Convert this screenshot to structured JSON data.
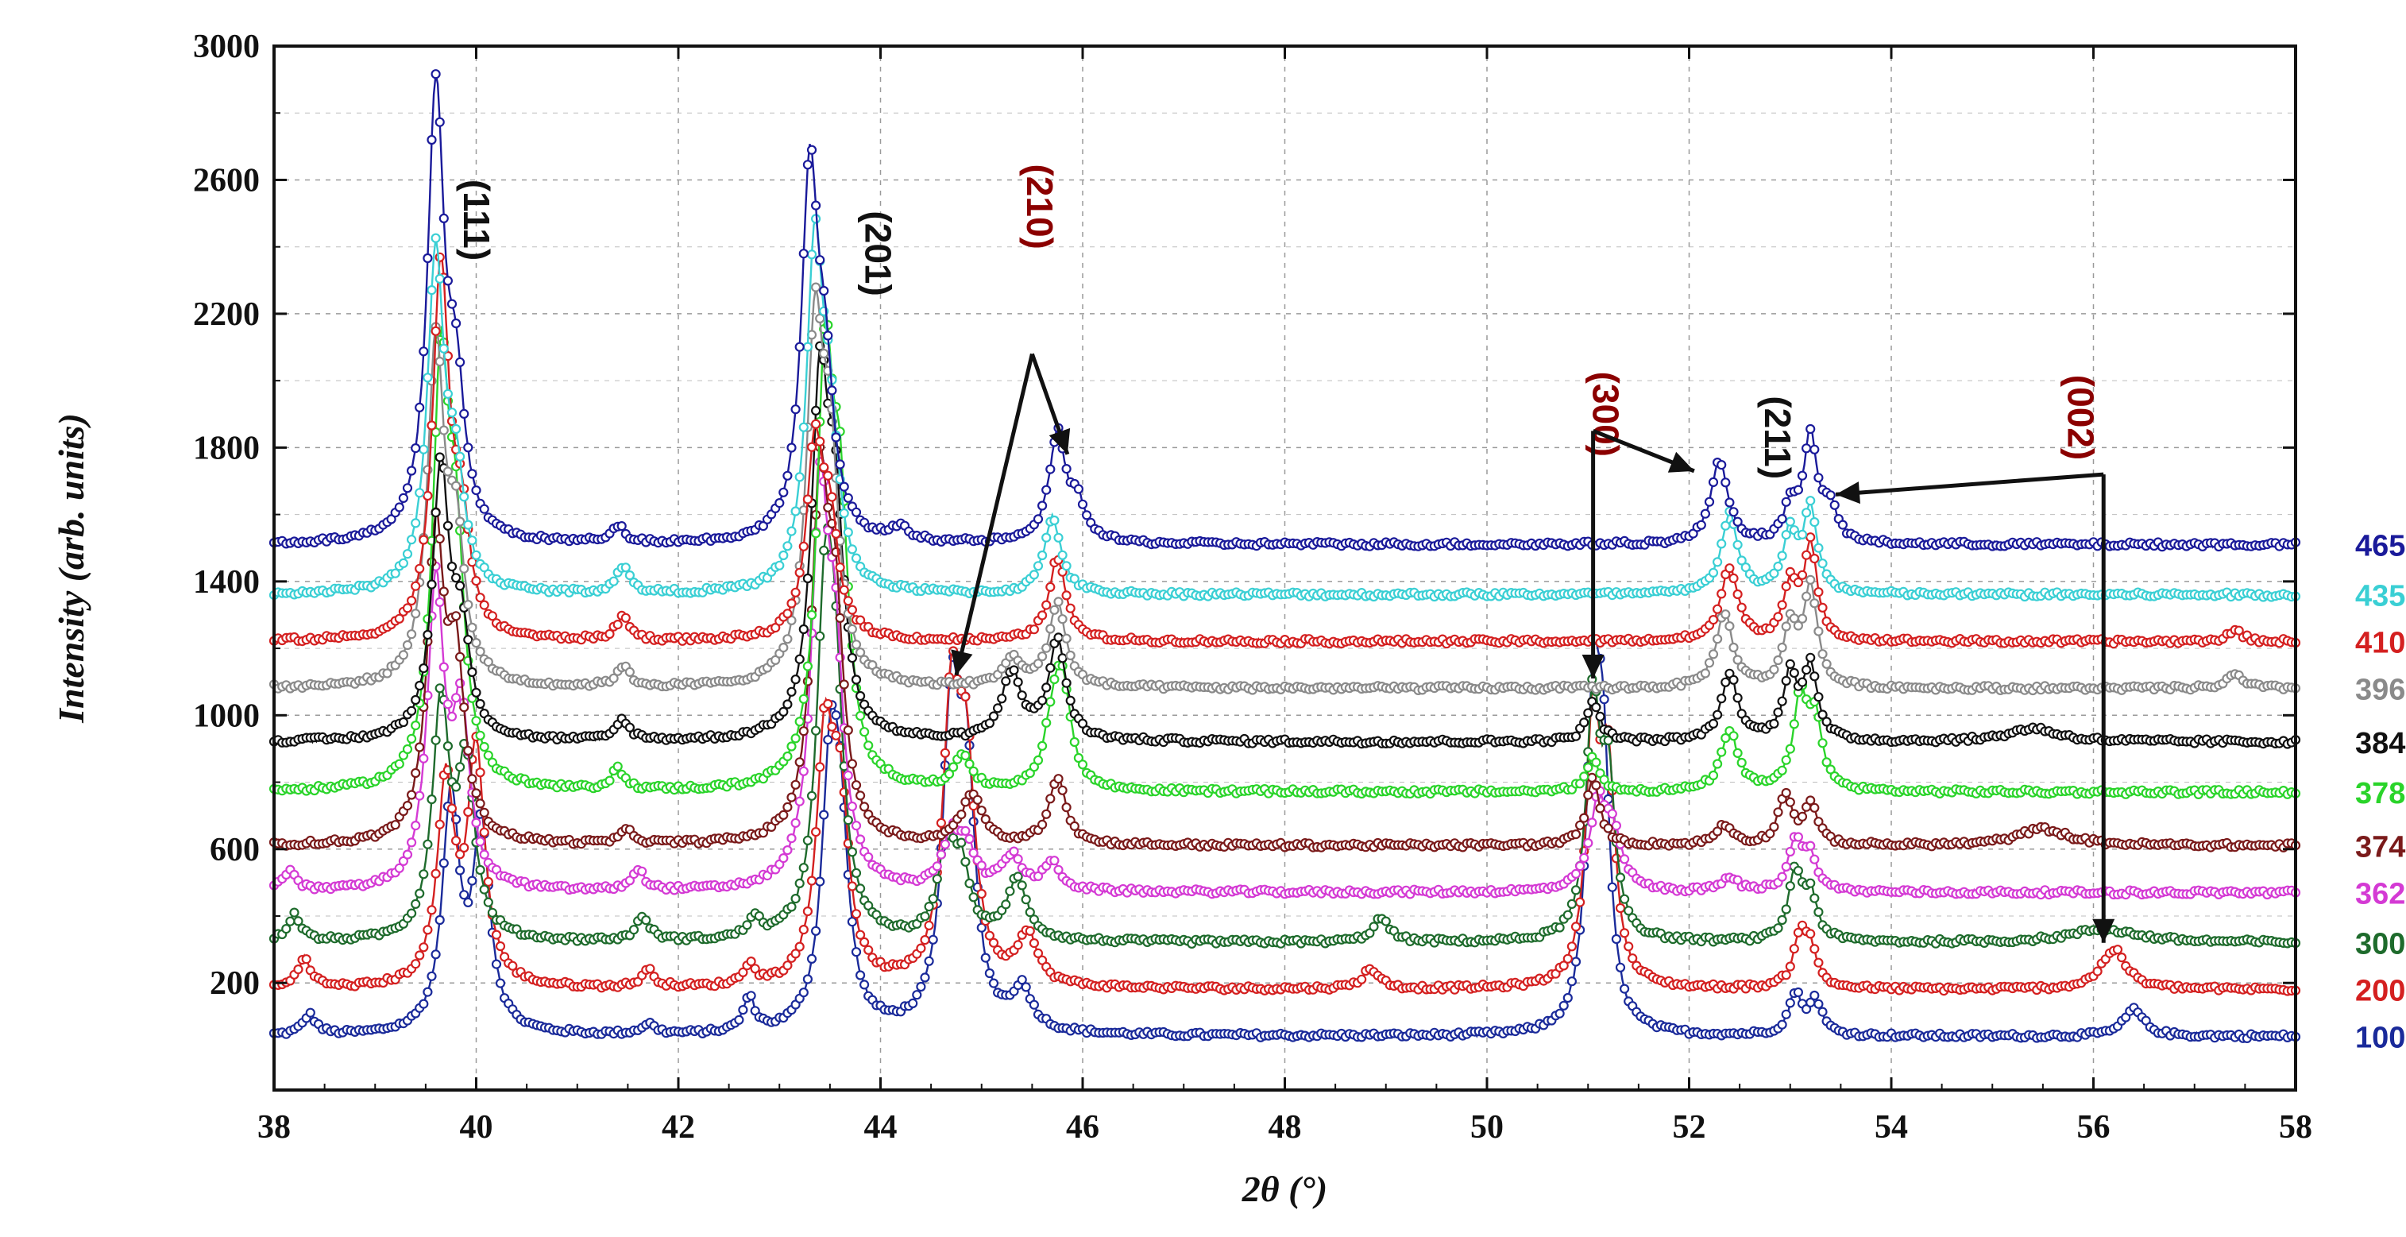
{
  "chart_data": {
    "type": "line",
    "title": "",
    "xlabel": "2θ (°)",
    "ylabel": "Intensity (arb. units)",
    "xlim": [
      38,
      58
    ],
    "ylim": [
      -120,
      3000
    ],
    "x_ticks": [
      38,
      40,
      42,
      44,
      46,
      48,
      50,
      52,
      54,
      56,
      58
    ],
    "y_ticks": [
      200,
      600,
      1000,
      1400,
      1800,
      2200,
      2600,
      3000
    ],
    "grid": true,
    "legend_position": "right",
    "series": [
      {
        "name": "100",
        "color": "#1a2a9a",
        "baseline": 40,
        "peaks": [
          [
            38.35,
            60,
            0.08
          ],
          [
            39.75,
            700,
            0.1
          ],
          [
            40.05,
            600,
            0.1
          ],
          [
            41.7,
            30,
            0.08
          ],
          [
            42.7,
            100,
            0.07
          ],
          [
            43.5,
            700,
            0.1
          ],
          [
            43.6,
            500,
            0.1
          ],
          [
            44.7,
            900,
            0.1
          ],
          [
            44.85,
            700,
            0.1
          ],
          [
            45.4,
            120,
            0.12
          ],
          [
            51.05,
            900,
            0.08
          ],
          [
            51.15,
            700,
            0.08
          ],
          [
            53.05,
            120,
            0.08
          ],
          [
            53.25,
            100,
            0.08
          ],
          [
            56.4,
            80,
            0.12
          ]
        ]
      },
      {
        "name": "200",
        "color": "#d42020",
        "baseline": 180,
        "peaks": [
          [
            38.3,
            90,
            0.08
          ],
          [
            39.7,
            600,
            0.1
          ],
          [
            40.0,
            700,
            0.1
          ],
          [
            41.7,
            50,
            0.08
          ],
          [
            42.7,
            60,
            0.07
          ],
          [
            43.45,
            700,
            0.1
          ],
          [
            43.6,
            500,
            0.1
          ],
          [
            44.7,
            800,
            0.1
          ],
          [
            44.85,
            600,
            0.1
          ],
          [
            45.45,
            150,
            0.12
          ],
          [
            48.85,
            60,
            0.1
          ],
          [
            51.05,
            800,
            0.08
          ],
          [
            51.2,
            600,
            0.08
          ],
          [
            53.1,
            150,
            0.08
          ],
          [
            53.2,
            100,
            0.08
          ],
          [
            56.2,
            120,
            0.15
          ]
        ]
      },
      {
        "name": "300",
        "color": "#1e6b2c",
        "baseline": 320,
        "peaks": [
          [
            38.2,
            80,
            0.08
          ],
          [
            39.65,
            700,
            0.1
          ],
          [
            39.9,
            500,
            0.1
          ],
          [
            41.65,
            70,
            0.08
          ],
          [
            42.75,
            60,
            0.07
          ],
          [
            43.45,
            900,
            0.1
          ],
          [
            43.55,
            600,
            0.1
          ],
          [
            44.65,
            250,
            0.1
          ],
          [
            44.8,
            200,
            0.1
          ],
          [
            45.35,
            180,
            0.12
          ],
          [
            48.95,
            70,
            0.1
          ],
          [
            51.05,
            700,
            0.08
          ],
          [
            51.2,
            450,
            0.08
          ],
          [
            53.05,
            200,
            0.08
          ],
          [
            53.2,
            130,
            0.08
          ],
          [
            56.1,
            40,
            0.4
          ]
        ]
      },
      {
        "name": "362",
        "color": "#d43ad4",
        "baseline": 470,
        "peaks": [
          [
            38.15,
            60,
            0.08
          ],
          [
            39.6,
            900,
            0.1
          ],
          [
            39.85,
            500,
            0.1
          ],
          [
            41.6,
            60,
            0.08
          ],
          [
            43.4,
            1100,
            0.1
          ],
          [
            43.55,
            600,
            0.1
          ],
          [
            44.7,
            150,
            0.1
          ],
          [
            44.85,
            120,
            0.1
          ],
          [
            45.3,
            100,
            0.12
          ],
          [
            45.7,
            80,
            0.1
          ],
          [
            51.1,
            250,
            0.1
          ],
          [
            51.25,
            150,
            0.1
          ],
          [
            52.4,
            40,
            0.1
          ],
          [
            53.05,
            150,
            0.08
          ],
          [
            53.2,
            100,
            0.08
          ]
        ]
      },
      {
        "name": "374",
        "color": "#7a1a1a",
        "baseline": 610,
        "peaks": [
          [
            39.6,
            900,
            0.1
          ],
          [
            39.8,
            500,
            0.1
          ],
          [
            41.5,
            40,
            0.08
          ],
          [
            43.4,
            1000,
            0.1
          ],
          [
            43.55,
            600,
            0.1
          ],
          [
            44.9,
            150,
            0.12
          ],
          [
            45.75,
            200,
            0.1
          ],
          [
            51.05,
            200,
            0.08
          ],
          [
            52.35,
            60,
            0.1
          ],
          [
            52.95,
            150,
            0.08
          ],
          [
            53.2,
            120,
            0.08
          ],
          [
            55.5,
            50,
            0.3
          ]
        ]
      },
      {
        "name": "378",
        "color": "#2ad42a",
        "baseline": 770,
        "peaks": [
          [
            39.65,
            1200,
            0.1
          ],
          [
            39.8,
            600,
            0.1
          ],
          [
            41.4,
            60,
            0.08
          ],
          [
            43.45,
            1200,
            0.1
          ],
          [
            43.6,
            700,
            0.1
          ],
          [
            44.8,
            100,
            0.1
          ],
          [
            45.8,
            300,
            0.1
          ],
          [
            45.7,
            150,
            0.1
          ],
          [
            51.05,
            100,
            0.08
          ],
          [
            52.4,
            180,
            0.1
          ],
          [
            53.1,
            280,
            0.08
          ],
          [
            53.25,
            200,
            0.08
          ]
        ]
      },
      {
        "name": "384",
        "color": "#111111",
        "baseline": 920,
        "peaks": [
          [
            39.65,
            800,
            0.1
          ],
          [
            39.85,
            300,
            0.1
          ],
          [
            41.45,
            60,
            0.08
          ],
          [
            43.4,
            1000,
            0.1
          ],
          [
            43.55,
            600,
            0.1
          ],
          [
            45.3,
            200,
            0.12
          ],
          [
            45.75,
            300,
            0.1
          ],
          [
            51.05,
            120,
            0.08
          ],
          [
            52.4,
            200,
            0.1
          ],
          [
            53.0,
            200,
            0.08
          ],
          [
            53.2,
            220,
            0.08
          ],
          [
            55.4,
            40,
            0.3
          ]
        ]
      },
      {
        "name": "396",
        "color": "#8a8a8a",
        "baseline": 1080,
        "peaks": [
          [
            39.6,
            1000,
            0.1
          ],
          [
            39.8,
            400,
            0.1
          ],
          [
            41.45,
            60,
            0.08
          ],
          [
            43.35,
            1000,
            0.1
          ],
          [
            43.5,
            600,
            0.1
          ],
          [
            45.3,
            80,
            0.12
          ],
          [
            45.75,
            250,
            0.1
          ],
          [
            52.35,
            220,
            0.1
          ],
          [
            53.0,
            180,
            0.08
          ],
          [
            53.2,
            300,
            0.08
          ],
          [
            57.4,
            40,
            0.1
          ]
        ]
      },
      {
        "name": "410",
        "color": "#d42020",
        "baseline": 1220,
        "peaks": [
          [
            39.65,
            1100,
            0.1
          ],
          [
            39.85,
            300,
            0.1
          ],
          [
            41.45,
            70,
            0.08
          ],
          [
            43.35,
            550,
            0.1
          ],
          [
            43.5,
            300,
            0.1
          ],
          [
            45.75,
            250,
            0.1
          ],
          [
            52.4,
            220,
            0.1
          ],
          [
            53.0,
            160,
            0.08
          ],
          [
            53.2,
            280,
            0.08
          ],
          [
            57.4,
            30,
            0.1
          ]
        ]
      },
      {
        "name": "435",
        "color": "#3acfd4",
        "baseline": 1360,
        "peaks": [
          [
            39.6,
            1000,
            0.1
          ],
          [
            39.8,
            300,
            0.1
          ],
          [
            41.45,
            80,
            0.08
          ],
          [
            43.35,
            1000,
            0.1
          ],
          [
            43.5,
            400,
            0.1
          ],
          [
            45.7,
            230,
            0.1
          ],
          [
            52.4,
            240,
            0.1
          ],
          [
            53.0,
            180,
            0.08
          ],
          [
            53.2,
            250,
            0.08
          ]
        ]
      },
      {
        "name": "465",
        "color": "#1a1a9a",
        "baseline": 1510,
        "peaks": [
          [
            39.6,
            1330,
            0.1
          ],
          [
            39.8,
            400,
            0.1
          ],
          [
            41.4,
            50,
            0.08
          ],
          [
            43.3,
            1070,
            0.1
          ],
          [
            43.45,
            400,
            0.1
          ],
          [
            44.2,
            40,
            0.1
          ],
          [
            45.75,
            320,
            0.1
          ],
          [
            45.95,
            100,
            0.1
          ],
          [
            52.3,
            250,
            0.1
          ],
          [
            53.0,
            100,
            0.08
          ],
          [
            53.2,
            320,
            0.08
          ],
          [
            53.4,
            100,
            0.08
          ]
        ]
      }
    ],
    "annotations": [
      {
        "text": "(111)",
        "color": "#111111",
        "x": 39.88,
        "y": 2480
      },
      {
        "text": "(201)",
        "color": "#111111",
        "x": 43.85,
        "y": 2380
      },
      {
        "text": "(210)",
        "color": "#8b0000",
        "x": 45.45,
        "y": 2520
      },
      {
        "text": "(300)",
        "color": "#8b0000",
        "x": 51.05,
        "y": 1900
      },
      {
        "text": "(211)",
        "color": "#111111",
        "x": 52.75,
        "y": 1830
      },
      {
        "text": "(002)",
        "color": "#8b0000",
        "x": 55.75,
        "y": 1890
      }
    ],
    "arrows": [
      {
        "from": [
          45.5,
          2080
        ],
        "to": [
          44.75,
          1120
        ]
      },
      {
        "from": [
          45.5,
          2080
        ],
        "to": [
          45.85,
          1780
        ]
      },
      {
        "from": [
          51.05,
          1850
        ],
        "to": [
          51.05,
          1110
        ]
      },
      {
        "from": [
          51.05,
          1850
        ],
        "to": [
          52.05,
          1730
        ]
      },
      {
        "from": [
          56.1,
          1720
        ],
        "to": [
          56.1,
          320
        ]
      },
      {
        "from": [
          56.1,
          1720
        ],
        "to": [
          53.45,
          1660
        ]
      }
    ]
  }
}
